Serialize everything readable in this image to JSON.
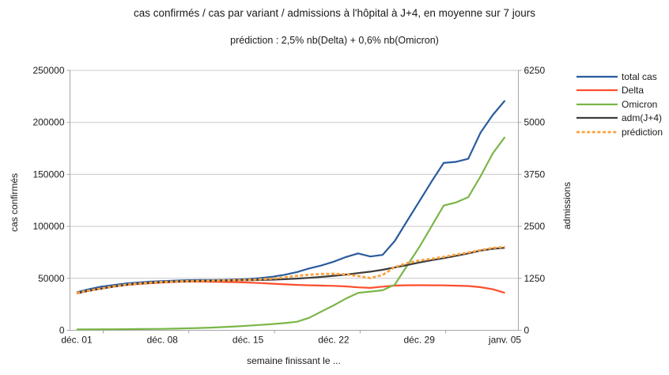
{
  "chart_data": {
    "type": "line",
    "title": "cas confirmés / cas par variant / admissions à l'hôpital à J+4, en moyenne sur 7 jours",
    "subtitle": "prédiction : 2,5% nb(Delta) + 0,6% nb(Omicron)",
    "xlabel": "semaine finissant le ...",
    "x_tick_labels": [
      "déc. 01",
      "déc. 08",
      "déc. 15",
      "déc. 22",
      "déc. 29",
      "janv. 05"
    ],
    "x_tick_days": [
      0,
      7,
      14,
      21,
      28,
      35
    ],
    "x_range_days": 35,
    "grid": "horizontal",
    "legend_position": "right",
    "left_axis": {
      "label": "cas confirmés",
      "min": 0,
      "max": 250000,
      "ticks": [
        0,
        50000,
        100000,
        150000,
        200000,
        250000
      ]
    },
    "right_axis": {
      "label": "admissions",
      "min": 0,
      "max": 6250,
      "ticks": [
        0,
        1250,
        2500,
        3750,
        5000,
        6250
      ]
    },
    "series": [
      {
        "name": "total cas",
        "axis": "left",
        "color": "#2a5b9e",
        "style": "solid",
        "values": [
          36500,
          39500,
          42000,
          43500,
          45000,
          46000,
          46800,
          47300,
          47800,
          48200,
          48300,
          48300,
          48500,
          48800,
          49300,
          50200,
          51500,
          53400,
          56000,
          59500,
          62300,
          66000,
          70500,
          74000,
          71000,
          72500,
          86000,
          105000,
          124000,
          143000,
          161000,
          162000,
          165000,
          190000,
          207000,
          221000
        ]
      },
      {
        "name": "Delta",
        "axis": "left",
        "color": "#ff4e2d",
        "style": "solid",
        "values": [
          35500,
          38000,
          40200,
          42000,
          43500,
          44500,
          45300,
          46000,
          46500,
          46800,
          46800,
          46700,
          46500,
          46300,
          46000,
          45400,
          44800,
          44200,
          43700,
          43300,
          43000,
          42800,
          42200,
          41300,
          40800,
          42000,
          43000,
          43300,
          43400,
          43300,
          43200,
          42900,
          42600,
          41500,
          39500,
          36000
        ]
      },
      {
        "name": "Omicron",
        "axis": "left",
        "color": "#7ab648",
        "style": "solid",
        "values": [
          800,
          900,
          1000,
          1000,
          1100,
          1200,
          1300,
          1400,
          1600,
          1900,
          2200,
          2600,
          3100,
          3700,
          4400,
          5200,
          6000,
          6900,
          8200,
          12000,
          18000,
          24000,
          30500,
          36000,
          37200,
          38500,
          44000,
          62000,
          80000,
          100000,
          120000,
          123000,
          128000,
          148000,
          170000,
          186000
        ]
      },
      {
        "name": "adm(J+4)",
        "axis": "right",
        "color": "#3c3c3c",
        "style": "solid",
        "values": [
          890,
          950,
          1000,
          1048,
          1088,
          1118,
          1140,
          1158,
          1170,
          1178,
          1185,
          1190,
          1195,
          1200,
          1205,
          1210,
          1218,
          1230,
          1245,
          1262,
          1285,
          1310,
          1340,
          1375,
          1410,
          1455,
          1510,
          1570,
          1630,
          1685,
          1735,
          1790,
          1850,
          1915,
          1960,
          1985
        ]
      },
      {
        "name": "prédiction",
        "axis": "right",
        "color": "#ffa13d",
        "style": "dashed",
        "values": [
          900,
          955,
          1005,
          1055,
          1095,
          1125,
          1145,
          1162,
          1172,
          1182,
          1188,
          1192,
          1198,
          1205,
          1215,
          1225,
          1245,
          1275,
          1310,
          1335,
          1355,
          1360,
          1345,
          1305,
          1255,
          1330,
          1520,
          1615,
          1680,
          1720,
          1765,
          1820,
          1870,
          1930,
          1980,
          2005
        ]
      }
    ]
  },
  "colors": {
    "grid": "#c8c8c8",
    "axis": "#a6a6a6",
    "tick_text": "#1a1a1a"
  }
}
